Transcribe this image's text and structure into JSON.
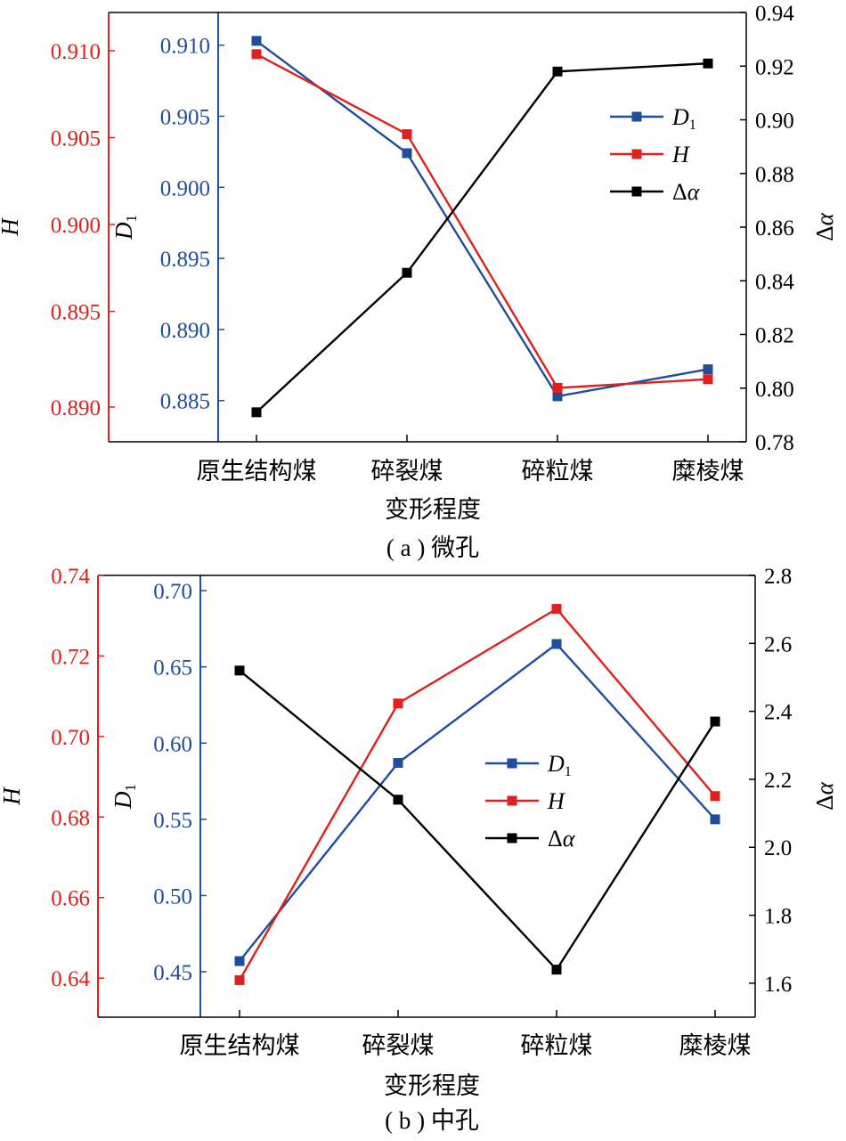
{
  "colors": {
    "D1": "#1f4e9c",
    "H": "#e0201b",
    "delta_alpha": "#000000"
  },
  "chart_data": [
    {
      "type": "line",
      "caption": "( a ) 微孔",
      "xlabel": "变形程度",
      "categories": [
        "原生结构煤",
        "碎裂煤",
        "碎粒煤",
        "糜棱煤"
      ],
      "axes": {
        "H": {
          "label": "H",
          "range": [
            0.8875,
            0.9122
          ],
          "ticks": [
            "0.890",
            "0.895",
            "0.900",
            "0.905",
            "0.910"
          ],
          "tick_values": [
            0.8895,
            0.895,
            0.9,
            0.905,
            0.91
          ],
          "color": "#e0201b",
          "side": "left-outer"
        },
        "D1": {
          "label": "D1",
          "range": [
            0.8821,
            0.9123
          ],
          "ticks": [
            "0.885",
            "0.890",
            "0.895",
            "0.900",
            "0.905",
            "0.910"
          ],
          "tick_values": [
            0.885,
            0.89,
            0.895,
            0.9,
            0.905,
            0.91
          ],
          "color": "#1f4e9c",
          "side": "left-inner"
        },
        "delta_alpha": {
          "label": "Δα",
          "range": [
            0.78,
            0.94
          ],
          "ticks": [
            "0.78",
            "0.80",
            "0.82",
            "0.84",
            "0.86",
            "0.88",
            "0.90",
            "0.92",
            "0.94"
          ],
          "tick_values": [
            0.78,
            0.8,
            0.82,
            0.84,
            0.86,
            0.88,
            0.9,
            0.92,
            0.94
          ],
          "color": "#000000",
          "side": "right"
        }
      },
      "series": [
        {
          "name": "D1",
          "axis": "D1",
          "values": [
            0.9103,
            0.9024,
            0.8853,
            0.8872
          ]
        },
        {
          "name": "H",
          "axis": "H",
          "values": [
            0.9098,
            0.9052,
            0.8906,
            0.8911
          ]
        },
        {
          "name": "Δα",
          "axis": "delta_alpha",
          "values": [
            0.791,
            0.843,
            0.918,
            0.921
          ]
        }
      ],
      "legend": {
        "position": "right-middle",
        "labels": [
          "D1",
          "H",
          "Δα"
        ]
      }
    },
    {
      "type": "line",
      "caption": "( b ) 中孔",
      "xlabel": "变形程度",
      "categories": [
        "原生结构煤",
        "碎裂煤",
        "碎粒煤",
        "糜棱煤"
      ],
      "axes": {
        "H": {
          "label": "H",
          "range": [
            0.6303,
            0.74
          ],
          "ticks": [
            "0.64",
            "0.66",
            "0.68",
            "0.70",
            "0.72",
            "0.74"
          ],
          "tick_values": [
            0.64,
            0.66,
            0.68,
            0.7,
            0.72,
            0.74
          ],
          "color": "#e0201b",
          "side": "left-outer"
        },
        "D1": {
          "label": "D1",
          "range": [
            0.4202,
            0.71
          ],
          "ticks": [
            "0.45",
            "0.50",
            "0.55",
            "0.60",
            "0.65",
            "0.70"
          ],
          "tick_values": [
            0.45,
            0.5,
            0.55,
            0.6,
            0.65,
            0.7
          ],
          "color": "#1f4e9c",
          "side": "left-inner"
        },
        "delta_alpha": {
          "label": "Δα",
          "range": [
            1.5,
            2.8
          ],
          "ticks": [
            "1.6",
            "1.8",
            "2.0",
            "2.2",
            "2.4",
            "2.6",
            "2.8"
          ],
          "tick_values": [
            1.6,
            1.8,
            2.0,
            2.2,
            2.4,
            2.6,
            2.8
          ],
          "color": "#000000",
          "side": "right"
        }
      },
      "series": [
        {
          "name": "D1",
          "axis": "D1",
          "values": [
            0.457,
            0.587,
            0.665,
            0.55
          ]
        },
        {
          "name": "H",
          "axis": "H",
          "values": [
            0.6395,
            0.7082,
            0.7317,
            0.6852
          ]
        },
        {
          "name": "Δα",
          "axis": "delta_alpha",
          "values": [
            2.52,
            2.14,
            1.64,
            2.37
          ]
        }
      ],
      "legend": {
        "position": "center",
        "labels": [
          "D1",
          "H",
          "Δα"
        ]
      }
    }
  ]
}
